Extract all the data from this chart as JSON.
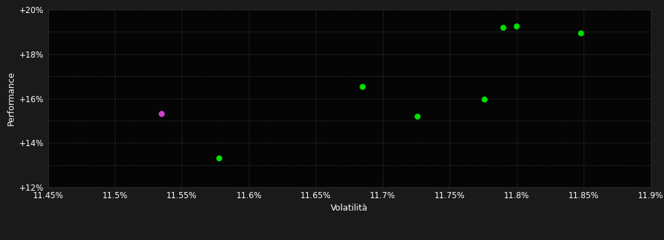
{
  "background_color": "#1a1a1a",
  "plot_bg_color": "#050505",
  "grid_color": "#333333",
  "text_color": "#ffffff",
  "xlabel": "Volatilità",
  "ylabel": "Performance",
  "xlim": [
    0.1145,
    0.119
  ],
  "ylim": [
    0.12,
    0.2
  ],
  "xticks": [
    0.1145,
    0.115,
    0.1155,
    0.116,
    0.1165,
    0.117,
    0.1175,
    0.118,
    0.1185,
    0.119
  ],
  "xtick_labels": [
    "11.45%",
    "11.5%",
    "11.55%",
    "11.6%",
    "11.65%",
    "11.7%",
    "11.75%",
    "11.8%",
    "11.85%",
    "11.9%"
  ],
  "yticks": [
    0.12,
    0.13,
    0.14,
    0.15,
    0.16,
    0.17,
    0.18,
    0.19,
    0.2
  ],
  "ytick_labels": [
    "+12%",
    "",
    "+14%",
    "",
    "+16%",
    "",
    "+18%",
    "",
    "+20%"
  ],
  "green_points": [
    [
      0.11578,
      0.133
    ],
    [
      0.11685,
      0.1652
    ],
    [
      0.11726,
      0.1518
    ],
    [
      0.11776,
      0.1595
    ],
    [
      0.1179,
      0.1918
    ],
    [
      0.118,
      0.1924
    ],
    [
      0.11848,
      0.1893
    ]
  ],
  "magenta_points": [
    [
      0.11535,
      0.153
    ]
  ],
  "green_color": "#00dd00",
  "magenta_color": "#cc44cc",
  "marker_size": 40
}
